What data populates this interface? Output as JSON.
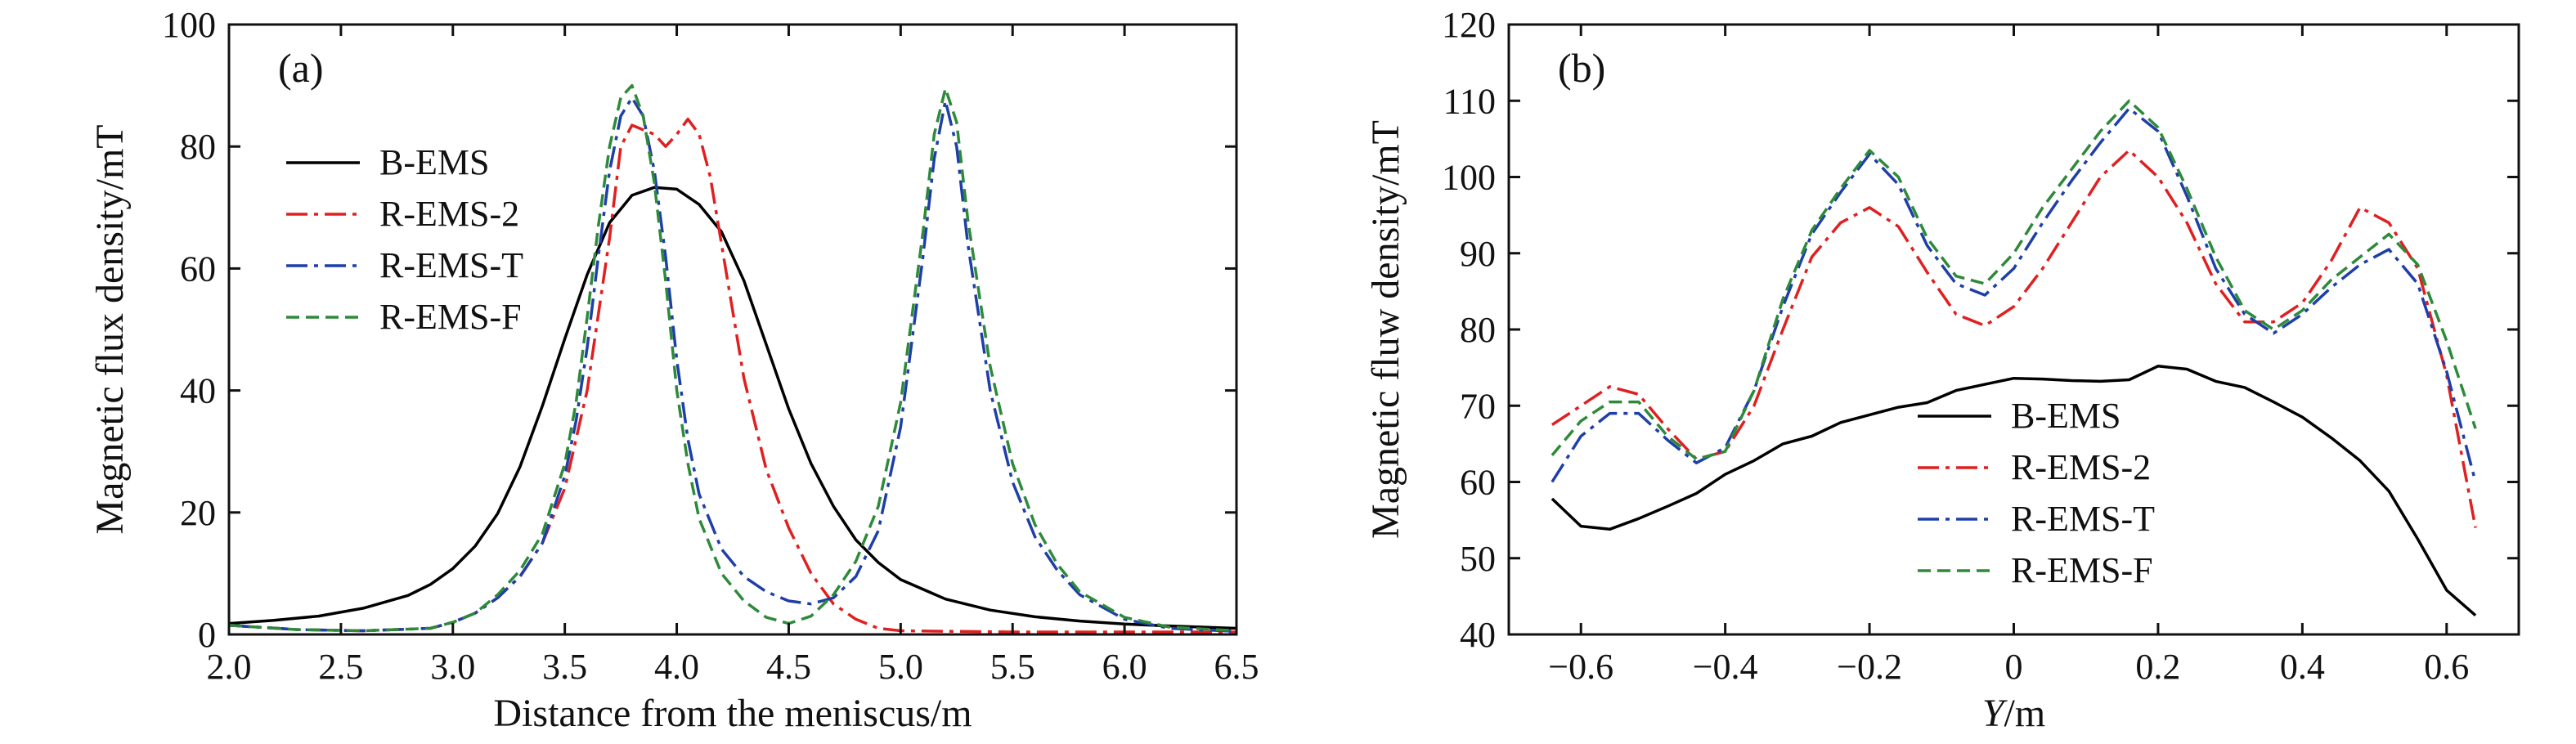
{
  "chart_data": [
    {
      "type": "line",
      "panel_label": "(a)",
      "xlabel": "Distance from the meniscus/m",
      "ylabel": "Magnetic flux density/mT",
      "xlim": [
        2.0,
        6.5
      ],
      "ylim": [
        0,
        100
      ],
      "xticks": [
        "2.0",
        "2.5",
        "3.0",
        "3.5",
        "4.0",
        "4.5",
        "5.0",
        "5.5",
        "6.0",
        "6.5"
      ],
      "yticks": [
        "0",
        "20",
        "40",
        "60",
        "80",
        "100"
      ],
      "legend_position": "upper-left",
      "series": [
        {
          "name": "B-EMS",
          "color": "#000000",
          "dash": "solid",
          "x": [
            2.0,
            2.2,
            2.4,
            2.6,
            2.8,
            2.9,
            3.0,
            3.1,
            3.2,
            3.3,
            3.4,
            3.5,
            3.6,
            3.7,
            3.8,
            3.9,
            4.0,
            4.1,
            4.2,
            4.3,
            4.4,
            4.5,
            4.6,
            4.7,
            4.8,
            4.9,
            5.0,
            5.2,
            5.4,
            5.6,
            5.8,
            6.0,
            6.2,
            6.5
          ],
          "y": [
            1.8,
            2.3,
            3.0,
            4.3,
            6.4,
            8.2,
            10.8,
            14.5,
            19.8,
            27.5,
            37.5,
            48.5,
            59.0,
            67.5,
            72.0,
            73.3,
            73.0,
            70.5,
            66.0,
            58.0,
            47.5,
            37.0,
            28.0,
            21.0,
            15.5,
            11.8,
            9.0,
            5.8,
            4.0,
            2.9,
            2.2,
            1.7,
            1.4,
            1.0
          ]
        },
        {
          "name": "R-EMS-2",
          "color": "#e02020",
          "dash": "dashdot",
          "x": [
            2.0,
            2.3,
            2.6,
            2.9,
            3.0,
            3.1,
            3.2,
            3.3,
            3.4,
            3.5,
            3.6,
            3.7,
            3.75,
            3.8,
            3.9,
            3.95,
            4.0,
            4.05,
            4.1,
            4.15,
            4.2,
            4.3,
            4.4,
            4.5,
            4.6,
            4.7,
            4.8,
            4.9,
            5.0,
            5.5,
            6.0,
            6.5
          ],
          "y": [
            1.5,
            0.8,
            0.6,
            1.0,
            2.0,
            3.5,
            6.0,
            9.5,
            15.0,
            24.0,
            40.0,
            65.0,
            80.0,
            83.5,
            82.0,
            80.0,
            82.0,
            84.5,
            82.0,
            75.0,
            64.0,
            42.0,
            27.0,
            17.5,
            10.0,
            5.0,
            2.5,
            1.0,
            0.6,
            0.4,
            0.4,
            0.4
          ]
        },
        {
          "name": "R-EMS-T",
          "color": "#1f3fa8",
          "dash": "dashdot",
          "x": [
            2.0,
            2.3,
            2.6,
            2.9,
            3.0,
            3.1,
            3.2,
            3.3,
            3.4,
            3.5,
            3.55,
            3.6,
            3.65,
            3.7,
            3.75,
            3.8,
            3.85,
            3.9,
            3.95,
            4.0,
            4.05,
            4.1,
            4.2,
            4.3,
            4.4,
            4.5,
            4.6,
            4.7,
            4.8,
            4.9,
            5.0,
            5.1,
            5.15,
            5.2,
            5.25,
            5.3,
            5.4,
            5.5,
            5.6,
            5.7,
            5.8,
            6.0,
            6.2,
            6.5
          ],
          "y": [
            1.5,
            0.8,
            0.6,
            1.0,
            2.0,
            3.5,
            6.0,
            9.5,
            15.0,
            26.0,
            35.0,
            47.0,
            62.0,
            76.0,
            85.0,
            88.0,
            85.0,
            76.0,
            62.0,
            45.0,
            32.0,
            23.0,
            14.0,
            9.5,
            7.0,
            5.5,
            5.0,
            6.0,
            9.5,
            17.0,
            34.0,
            62.0,
            78.0,
            87.5,
            80.0,
            64.0,
            40.0,
            25.0,
            16.0,
            10.5,
            6.5,
            2.5,
            1.0,
            0.5
          ]
        },
        {
          "name": "R-EMS-F",
          "color": "#2e8a3a",
          "dash": "dashed",
          "x": [
            2.0,
            2.3,
            2.6,
            2.9,
            3.0,
            3.1,
            3.2,
            3.3,
            3.4,
            3.5,
            3.55,
            3.6,
            3.65,
            3.7,
            3.75,
            3.8,
            3.85,
            3.9,
            3.95,
            4.0,
            4.05,
            4.1,
            4.2,
            4.3,
            4.4,
            4.5,
            4.6,
            4.7,
            4.8,
            4.9,
            5.0,
            5.1,
            5.15,
            5.2,
            5.25,
            5.3,
            5.4,
            5.5,
            5.6,
            5.7,
            5.8,
            6.0,
            6.2,
            6.5
          ],
          "y": [
            1.5,
            0.8,
            0.6,
            1.0,
            2.0,
            3.5,
            6.5,
            10.5,
            16.5,
            28.0,
            38.0,
            52.0,
            67.0,
            80.0,
            88.0,
            90.0,
            85.0,
            74.0,
            58.0,
            40.0,
            28.0,
            19.0,
            10.0,
            5.5,
            2.8,
            1.8,
            3.0,
            6.5,
            12.0,
            21.0,
            38.0,
            66.0,
            82.0,
            89.5,
            84.0,
            68.0,
            44.0,
            28.0,
            18.0,
            11.5,
            7.0,
            2.8,
            1.2,
            0.6
          ]
        }
      ]
    },
    {
      "type": "line",
      "panel_label": "(b)",
      "xlabel_italic": "Y",
      "xlabel_unit": "/m",
      "ylabel": "Magnetic fluw density/mT",
      "xlim": [
        -0.7,
        0.7
      ],
      "ylim": [
        40,
        120
      ],
      "xticks": [
        "−0.6",
        "−0.4",
        "−0.2",
        "0",
        "0.2",
        "0.4",
        "0.6"
      ],
      "xtick_values": [
        -0.6,
        -0.4,
        -0.2,
        0,
        0.2,
        0.4,
        0.6
      ],
      "yticks": [
        "40",
        "50",
        "60",
        "70",
        "80",
        "90",
        "100",
        "110",
        "120"
      ],
      "legend_position": "lower-center",
      "series": [
        {
          "name": "B-EMS",
          "color": "#000000",
          "dash": "solid",
          "x": [
            -0.64,
            -0.6,
            -0.56,
            -0.52,
            -0.48,
            -0.44,
            -0.4,
            -0.36,
            -0.32,
            -0.28,
            -0.24,
            -0.2,
            -0.16,
            -0.12,
            -0.08,
            -0.04,
            0,
            0.04,
            0.08,
            0.12,
            0.16,
            0.2,
            0.24,
            0.28,
            0.32,
            0.36,
            0.4,
            0.44,
            0.48,
            0.52,
            0.56,
            0.6,
            0.64
          ],
          "y": [
            57.8,
            54.2,
            53.8,
            55.2,
            56.8,
            58.5,
            61.0,
            62.8,
            65.0,
            66.0,
            67.8,
            68.8,
            69.8,
            70.4,
            72.0,
            72.8,
            73.6,
            73.5,
            73.3,
            73.2,
            73.4,
            75.2,
            74.8,
            73.2,
            72.4,
            70.5,
            68.5,
            65.8,
            62.8,
            58.8,
            52.5,
            45.8,
            42.5
          ]
        },
        {
          "name": "R-EMS-2",
          "color": "#e02020",
          "dash": "dashdot",
          "x": [
            -0.64,
            -0.6,
            -0.56,
            -0.52,
            -0.48,
            -0.44,
            -0.4,
            -0.36,
            -0.32,
            -0.28,
            -0.24,
            -0.2,
            -0.16,
            -0.12,
            -0.08,
            -0.04,
            0,
            0.04,
            0.08,
            0.12,
            0.16,
            0.2,
            0.24,
            0.28,
            0.32,
            0.36,
            0.4,
            0.44,
            0.48,
            0.52,
            0.56,
            0.6,
            0.64
          ],
          "y": [
            67.5,
            70.0,
            72.5,
            71.5,
            67.0,
            63.0,
            64.0,
            70.0,
            80.0,
            89.5,
            94.0,
            96.0,
            93.5,
            87.5,
            82.0,
            80.5,
            83.0,
            88.0,
            94.0,
            100.0,
            103.5,
            100.0,
            94.0,
            86.0,
            81.0,
            81.0,
            83.5,
            89.0,
            96.0,
            94.0,
            88.0,
            74.0,
            54.0
          ]
        },
        {
          "name": "R-EMS-T",
          "color": "#1f3fa8",
          "dash": "dashdot",
          "x": [
            -0.64,
            -0.6,
            -0.56,
            -0.52,
            -0.48,
            -0.44,
            -0.4,
            -0.36,
            -0.32,
            -0.28,
            -0.24,
            -0.2,
            -0.16,
            -0.12,
            -0.08,
            -0.04,
            0,
            0.04,
            0.08,
            0.12,
            0.16,
            0.2,
            0.24,
            0.28,
            0.32,
            0.36,
            0.4,
            0.44,
            0.48,
            0.52,
            0.56,
            0.6,
            0.64
          ],
          "y": [
            60.0,
            66.0,
            69.0,
            69.0,
            65.5,
            62.5,
            64.5,
            72.0,
            83.0,
            92.5,
            98.0,
            103.0,
            99.0,
            91.0,
            86.0,
            84.5,
            88.0,
            94.0,
            99.5,
            104.5,
            109.0,
            106.0,
            97.5,
            88.0,
            82.0,
            79.5,
            82.0,
            85.5,
            88.5,
            90.5,
            86.0,
            74.5,
            60.0
          ]
        },
        {
          "name": "R-EMS-F",
          "color": "#2e8a3a",
          "dash": "dashed",
          "x": [
            -0.64,
            -0.6,
            -0.56,
            -0.52,
            -0.48,
            -0.44,
            -0.4,
            -0.36,
            -0.32,
            -0.28,
            -0.24,
            -0.2,
            -0.16,
            -0.12,
            -0.08,
            -0.04,
            0,
            0.04,
            0.08,
            0.12,
            0.16,
            0.2,
            0.24,
            0.28,
            0.32,
            0.36,
            0.4,
            0.44,
            0.48,
            0.52,
            0.56,
            0.6,
            0.64
          ],
          "y": [
            63.5,
            68.0,
            70.5,
            70.5,
            66.0,
            63.0,
            64.0,
            72.0,
            84.0,
            93.0,
            98.5,
            103.5,
            100.0,
            92.0,
            87.0,
            86.0,
            90.0,
            96.0,
            101.0,
            106.0,
            110.0,
            106.5,
            98.5,
            89.5,
            82.5,
            80.0,
            82.5,
            86.5,
            89.5,
            92.5,
            88.5,
            78.5,
            67.0
          ]
        }
      ]
    }
  ]
}
